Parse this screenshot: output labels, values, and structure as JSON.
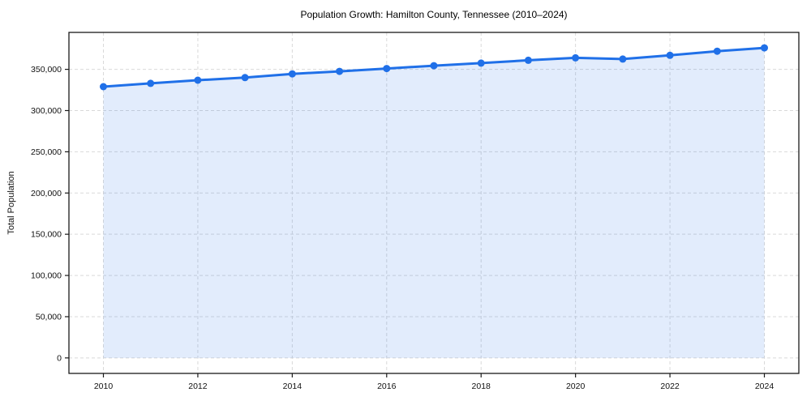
{
  "chart_data": {
    "type": "line",
    "title": "Population Growth: Hamilton County, Tennessee (2010–2024)",
    "xlabel": "",
    "ylabel": "Total Population",
    "x": [
      2010,
      2011,
      2012,
      2013,
      2014,
      2015,
      2016,
      2017,
      2018,
      2019,
      2020,
      2021,
      2022,
      2023,
      2024
    ],
    "series": [
      {
        "name": "Total Population",
        "values": [
          329000,
          333000,
          336800,
          340000,
          344500,
          347500,
          351000,
          354400,
          357600,
          361000,
          364000,
          362500,
          367000,
          372000,
          376000
        ]
      }
    ],
    "xlim": [
      2009.27,
      2024.73
    ],
    "ylim": [
      -18800,
      394800
    ],
    "xticks": [
      2010,
      2012,
      2014,
      2016,
      2018,
      2020,
      2022,
      2024
    ],
    "yticks": [
      0,
      50000,
      100000,
      150000,
      200000,
      250000,
      300000,
      350000
    ],
    "grid": true,
    "grid_style": "dashed",
    "legend_position": "none",
    "line_color": "#2070e8",
    "fill_color": "rgba(32,112,232,0.13)",
    "grid_color": "#d9d9d9",
    "axis_color": "#1a1a1a",
    "tick_label_color": "#111111",
    "background_color": "#ffffff",
    "marker": "circle"
  }
}
